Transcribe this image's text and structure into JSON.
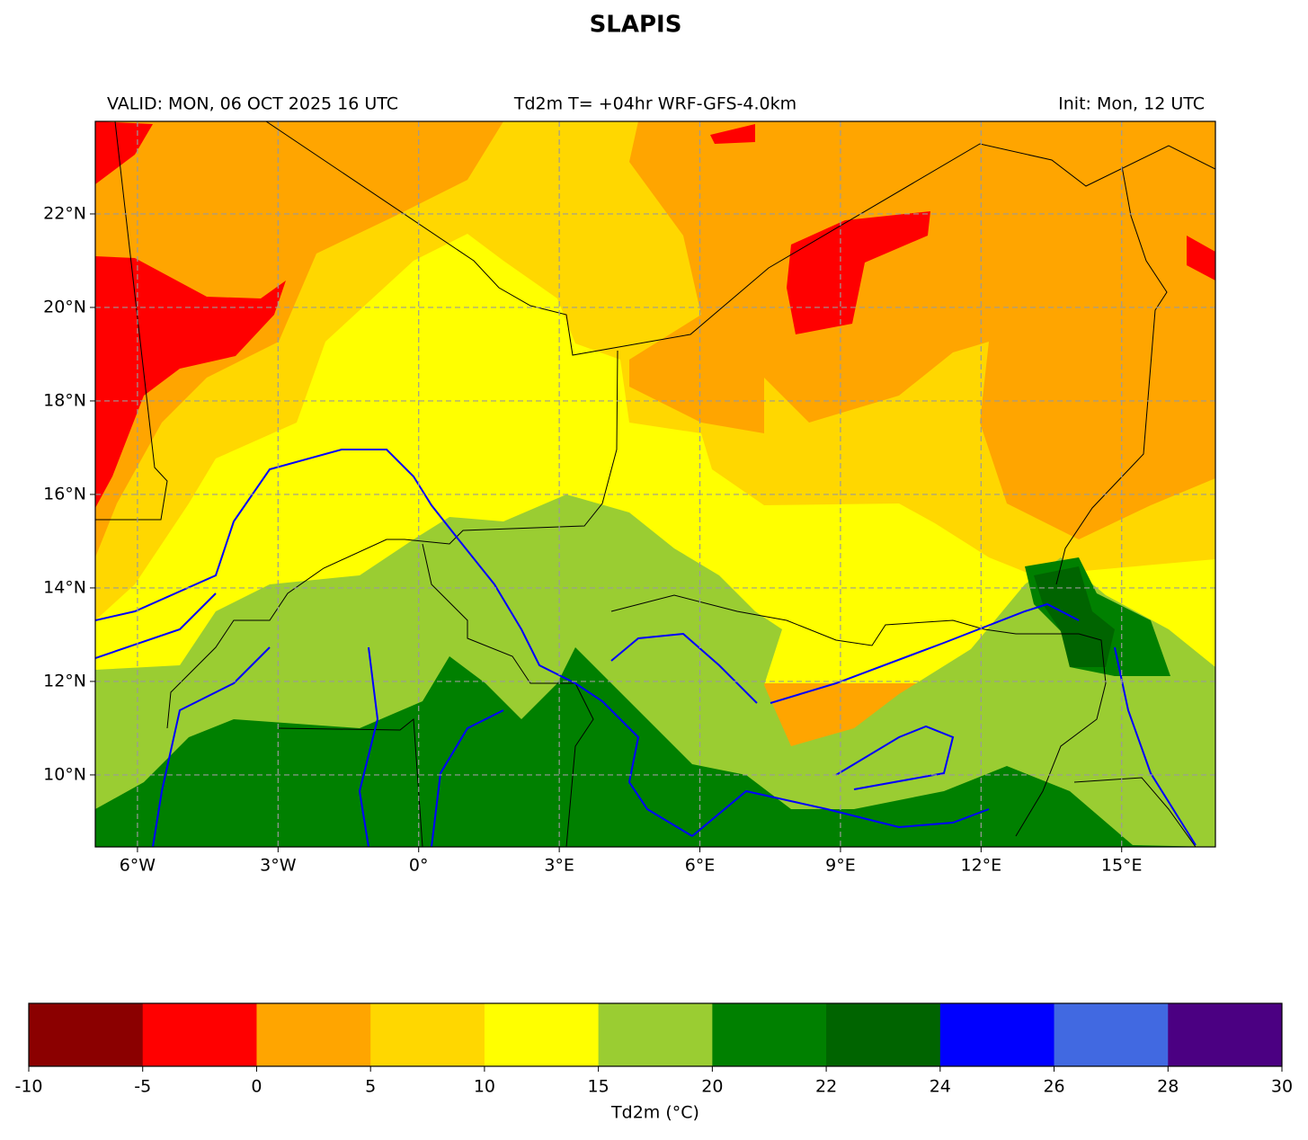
{
  "title": "SLAPIS",
  "subtitle_left": "VALID: MON, 06 OCT 2025 16 UTC",
  "subtitle_center": "Td2m T= +04hr WRF-GFS-4.0km",
  "subtitle_right": "Init: Mon, 12 UTC",
  "map": {
    "xlim": [
      -6.9,
      17
    ],
    "ylim": [
      8.46,
      23.98
    ],
    "grid": true,
    "xticks": [
      {
        "value": -6,
        "label": "6°W"
      },
      {
        "value": -3,
        "label": "3°W"
      },
      {
        "value": 0,
        "label": "0°"
      },
      {
        "value": 3,
        "label": "3°E"
      },
      {
        "value": 6,
        "label": "6°E"
      },
      {
        "value": 9,
        "label": "9°E"
      },
      {
        "value": 12,
        "label": "12°E"
      },
      {
        "value": 15,
        "label": "15°E"
      }
    ],
    "yticks": [
      {
        "value": 10,
        "label": "10°N"
      },
      {
        "value": 12,
        "label": "12°N"
      },
      {
        "value": 14,
        "label": "14°N"
      },
      {
        "value": 16,
        "label": "16°N"
      },
      {
        "value": 18,
        "label": "18°N"
      },
      {
        "value": 20,
        "label": "20°N"
      },
      {
        "value": 22,
        "label": "22°N"
      }
    ]
  },
  "colorbar": {
    "label": "Td2m (°C)",
    "bounds": [
      -10,
      -5,
      0,
      5,
      10,
      15,
      20,
      22,
      24,
      26,
      28,
      30
    ],
    "colors": [
      "#8b0000",
      "#ff0000",
      "#ffa500",
      "#ffd700",
      "#ffff00",
      "#9acd32",
      "#008000",
      "#006400",
      "#0000ff",
      "#4169e1",
      "#4b0082"
    ]
  }
}
